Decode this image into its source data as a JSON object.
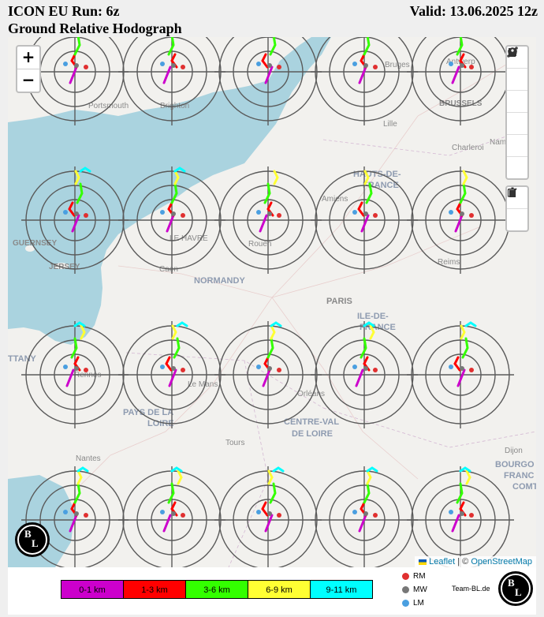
{
  "header": {
    "title_line1": "ICON EU Run: 6z",
    "title_line2": "Ground Relative Hodograph",
    "valid": "Valid: 13.06.2025 12z"
  },
  "map_controls": {
    "zoom_in": "+",
    "zoom_out": "−",
    "draw_tools": [
      "polyline-icon",
      "polygon-icon",
      "rectangle-icon",
      "circle-icon",
      "marker-icon",
      "circlemarker-icon"
    ],
    "edit_tools": [
      "edit-icon",
      "trash-icon"
    ]
  },
  "attribution": {
    "leaflet": "Leaflet",
    "sep": "| ©",
    "osm": "OpenStreetMap"
  },
  "places": [
    {
      "name": "Portsmouth",
      "kind": "city"
    },
    {
      "name": "Brighton",
      "kind": "city"
    },
    {
      "name": "Bruges",
      "kind": "city"
    },
    {
      "name": "Antwerp",
      "kind": "city"
    },
    {
      "name": "BRUSSELS",
      "kind": "capital"
    },
    {
      "name": "Lille",
      "kind": "city"
    },
    {
      "name": "Charleroi",
      "kind": "city"
    },
    {
      "name": "Namu",
      "kind": "city"
    },
    {
      "name": "HAUTS-DE-",
      "kind": "region"
    },
    {
      "name": "FRANCE",
      "kind": "region"
    },
    {
      "name": "GUERNSEY",
      "kind": "island"
    },
    {
      "name": "JERSEY",
      "kind": "island"
    },
    {
      "name": "LE HAVRE",
      "kind": "city"
    },
    {
      "name": "Rouen",
      "kind": "city"
    },
    {
      "name": "Amiens",
      "kind": "city"
    },
    {
      "name": "Reims",
      "kind": "city"
    },
    {
      "name": "Caen",
      "kind": "city"
    },
    {
      "name": "NORMANDY",
      "kind": "region"
    },
    {
      "name": "PARIS",
      "kind": "capital"
    },
    {
      "name": "ILE-DE-",
      "kind": "region"
    },
    {
      "name": "FRANCE",
      "kind": "region"
    },
    {
      "name": "TTANY",
      "kind": "region"
    },
    {
      "name": "Rennes",
      "kind": "city"
    },
    {
      "name": "Le Mans",
      "kind": "city"
    },
    {
      "name": "Orléans",
      "kind": "city"
    },
    {
      "name": "PAYS DE LA",
      "kind": "region"
    },
    {
      "name": "LOIRE",
      "kind": "region"
    },
    {
      "name": "CENTRE-VAL",
      "kind": "region"
    },
    {
      "name": "DE LOIRE",
      "kind": "region"
    },
    {
      "name": "Tours",
      "kind": "city"
    },
    {
      "name": "Nantes",
      "kind": "city"
    },
    {
      "name": "Dijon",
      "kind": "city"
    },
    {
      "name": "BOURGO",
      "kind": "region"
    },
    {
      "name": "FRANC",
      "kind": "region"
    },
    {
      "name": "COMT",
      "kind": "region"
    }
  ],
  "legend": {
    "height_bands": [
      {
        "label": "0-1 km",
        "color": "#cc00cc"
      },
      {
        "label": "1-3 km",
        "color": "#ff0000"
      },
      {
        "label": "3-6 km",
        "color": "#33ff00"
      },
      {
        "label": "6-9 km",
        "color": "#ffff33"
      },
      {
        "label": "9-11 km",
        "color": "#00ffff"
      }
    ],
    "markers": [
      {
        "label": "RM",
        "color": "#e03030"
      },
      {
        "label": "MW",
        "color": "#777777"
      },
      {
        "label": "LM",
        "color": "#4a9fe0"
      }
    ],
    "site": "Team-BL.de"
  },
  "logo": {
    "letter_top": "B",
    "letter_bottom": "L"
  },
  "colors": {
    "sea": "#aad3df",
    "land": "#f2f1ee",
    "rings": "#555555"
  }
}
